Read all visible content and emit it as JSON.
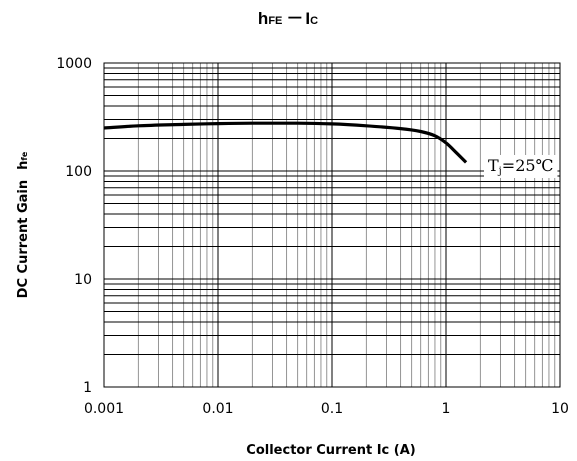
{
  "chart_data": {
    "type": "line",
    "title": {
      "main_1": "h",
      "sub_1": "FE",
      "separator": "－",
      "main_2": "I",
      "sub_2": "C"
    },
    "ylabel": {
      "main": "DC Current Gain",
      "sub": "h",
      "sub_suffix": "fe"
    },
    "xlabel": "Collector Current Ic  (A)",
    "x_scale": "log",
    "y_scale": "log",
    "xlim": [
      0.001,
      10
    ],
    "ylim": [
      1,
      1000
    ],
    "x_ticks": [
      0.001,
      0.01,
      0.1,
      1,
      10
    ],
    "x_tick_labels": [
      "0.001",
      "0.01",
      "0.1",
      "1",
      "10"
    ],
    "y_ticks": [
      1,
      10,
      100,
      1000
    ],
    "y_tick_labels": [
      "1",
      "10",
      "100",
      "1000"
    ],
    "grid": true,
    "series": [
      {
        "color": "#000000",
        "x": [
          0.001,
          0.002,
          0.005,
          0.01,
          0.02,
          0.05,
          0.1,
          0.2,
          0.4,
          0.6,
          0.8,
          1.0,
          1.2,
          1.5
        ],
        "y": [
          250,
          262,
          270,
          275,
          277,
          277,
          273,
          262,
          247,
          232,
          212,
          182,
          152,
          120
        ]
      }
    ],
    "annotation": {
      "main": "T",
      "sub": "j",
      "rest": "=25℃"
    }
  }
}
